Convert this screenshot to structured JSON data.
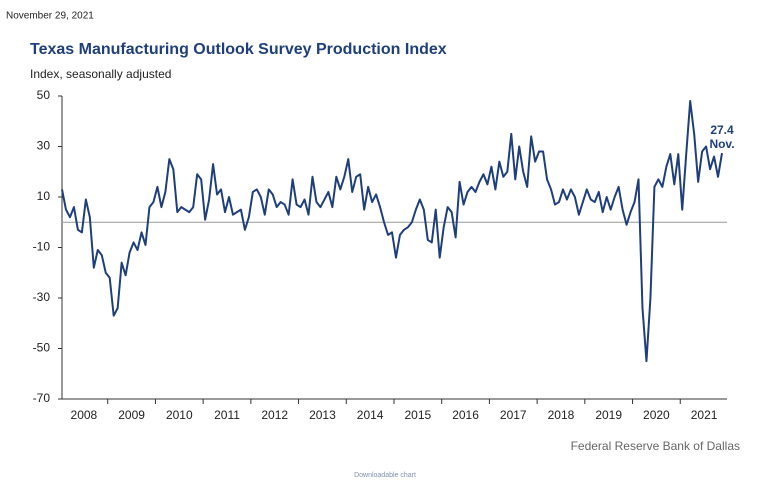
{
  "date": "November 29, 2021",
  "chart_data": {
    "type": "line",
    "title": "Texas Manufacturing Outlook Survey Production Index",
    "subtitle": "Index, seasonally adjusted",
    "annotation": "Nov.",
    "source": "Federal Reserve Bank of Dallas",
    "footer": "Downloadable chart",
    "color": "#1f3f7a",
    "ylim": [
      -70,
      50
    ],
    "yticks": [
      50,
      30,
      10,
      -10,
      -30,
      -50,
      -70
    ],
    "categories": [
      null,
      null,
      null,
      null,
      null,
      null,
      "2008",
      null,
      null,
      null,
      null,
      null,
      null,
      null,
      null,
      null,
      null,
      null,
      "2009",
      null,
      null,
      null,
      null,
      null,
      null,
      null,
      null,
      null,
      null,
      null,
      "2010",
      null,
      null,
      null,
      null,
      null,
      null,
      null,
      null,
      null,
      null,
      null,
      "2011",
      null,
      null,
      null,
      null,
      null,
      null,
      null,
      null,
      null,
      null,
      null,
      "2012",
      null,
      null,
      null,
      null,
      null,
      null,
      null,
      null,
      null,
      null,
      null,
      "2013",
      null,
      null,
      null,
      null,
      null,
      null,
      null,
      null,
      null,
      null,
      null,
      "2014",
      null,
      null,
      null,
      null,
      null,
      null,
      null,
      null,
      null,
      null,
      null,
      "2015",
      null,
      null,
      null,
      null,
      null,
      null,
      null,
      null,
      null,
      null,
      null,
      "2016",
      null,
      null,
      null,
      null,
      null,
      null,
      null,
      null,
      null,
      null,
      null,
      "2017",
      null,
      null,
      null,
      null,
      null,
      null,
      null,
      null,
      null,
      null,
      null,
      "2018",
      null,
      null,
      null,
      null,
      null,
      null,
      null,
      null,
      null,
      null,
      null,
      "2019",
      null,
      null,
      null,
      null,
      null,
      null,
      null,
      null,
      null,
      null,
      null,
      "2020",
      null,
      null,
      null,
      null,
      null,
      null,
      null,
      null,
      null,
      null,
      null,
      "2021",
      null,
      null,
      null,
      null
    ],
    "values": [
      13,
      5,
      2,
      6,
      -3,
      -4,
      9,
      2,
      -18,
      -11,
      -13,
      -20,
      -22,
      -37,
      -34,
      -16,
      -21,
      -12,
      -8,
      -11,
      -4,
      -9,
      6,
      8,
      14,
      6,
      12,
      25,
      21,
      4,
      6,
      5,
      4,
      6,
      19,
      17,
      1,
      9,
      23,
      11,
      13,
      4,
      10,
      3,
      4,
      5,
      -3,
      2,
      12,
      13,
      10,
      3,
      13,
      11,
      6,
      8,
      7,
      3,
      17,
      7,
      6,
      9,
      3,
      18,
      8,
      6,
      9,
      12,
      6,
      18,
      13,
      18,
      25,
      12,
      18,
      19,
      5,
      14,
      8,
      11,
      6,
      0,
      -5,
      -4,
      -14,
      -5,
      -3,
      -2,
      0,
      5,
      9,
      5,
      -7,
      -8,
      5,
      -14,
      -2,
      6,
      4,
      -6,
      16,
      7,
      12,
      14,
      12,
      16,
      19,
      15,
      22,
      13,
      24,
      18,
      20,
      35,
      17,
      30,
      20,
      14,
      34,
      24,
      28,
      28,
      17,
      13,
      7,
      8,
      13,
      9,
      13,
      10,
      3,
      8,
      13,
      9,
      8,
      12,
      4,
      10,
      5,
      10,
      14,
      5,
      -1,
      4,
      8,
      17,
      -34,
      -55,
      -30,
      14,
      17,
      14,
      22,
      27,
      15,
      27,
      5,
      27,
      48,
      35,
      16,
      28,
      30,
      21,
      26,
      18,
      27.4
    ]
  }
}
